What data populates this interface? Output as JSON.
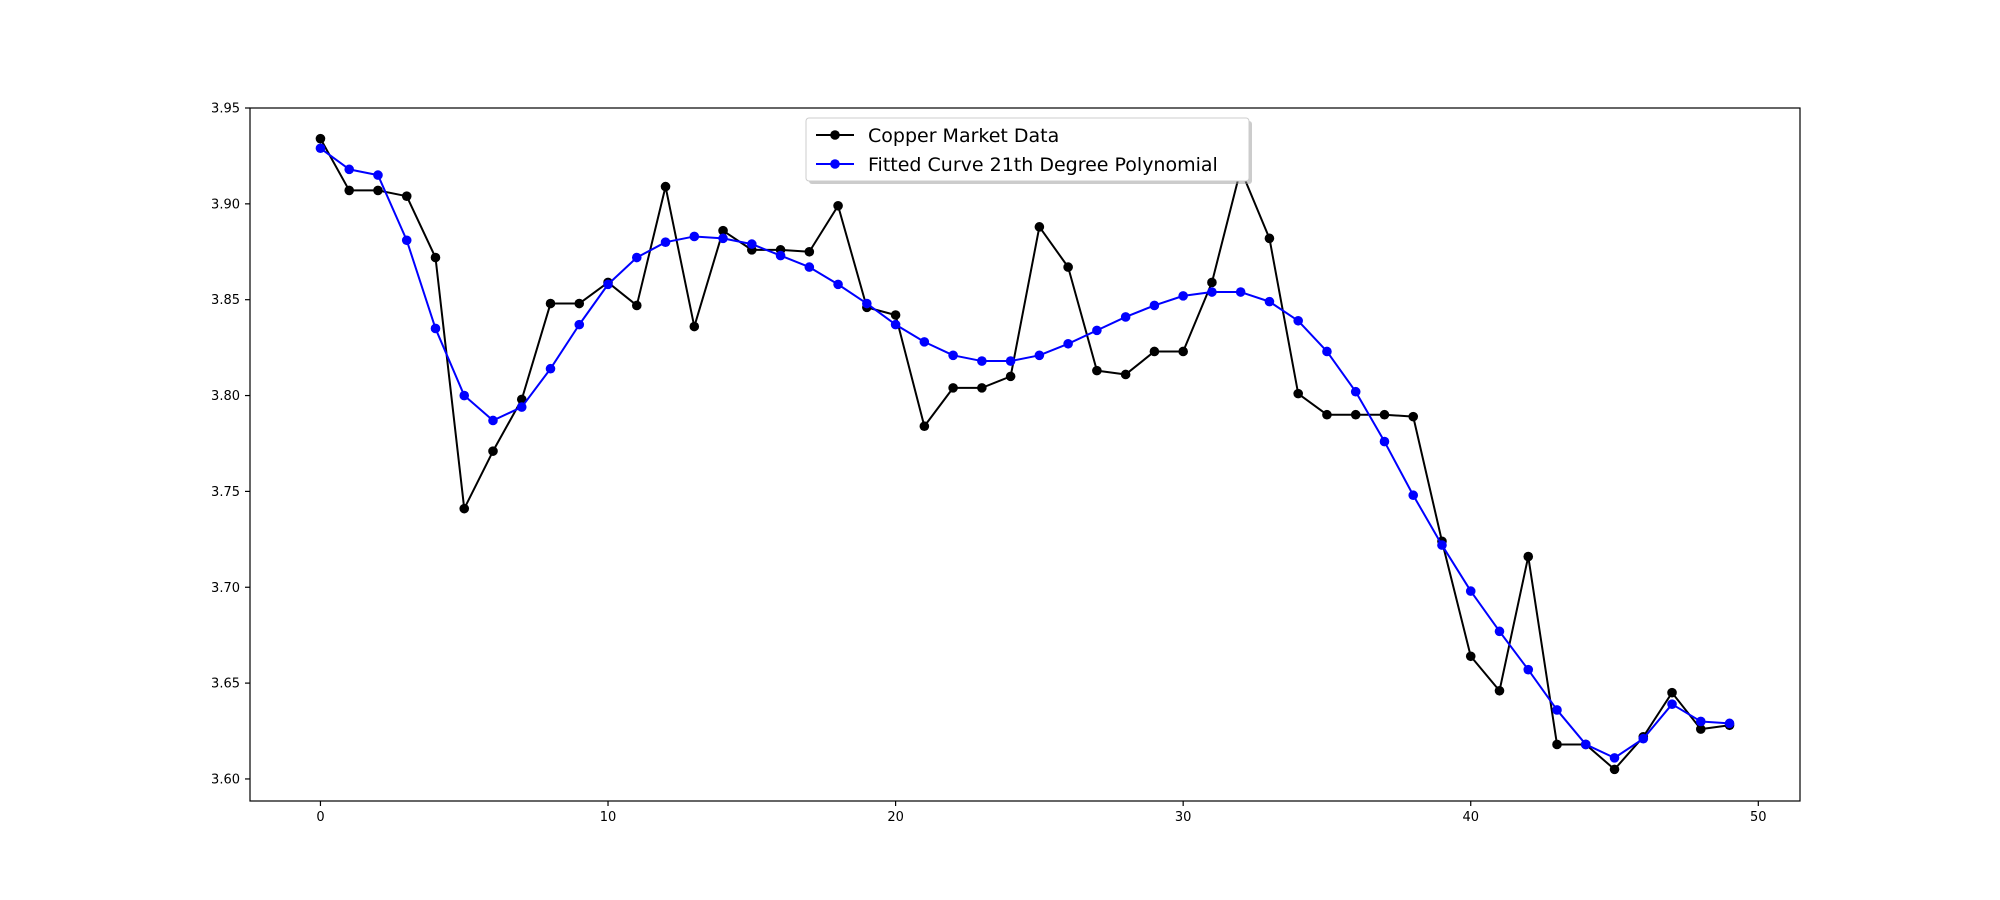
{
  "chart_data": {
    "type": "line",
    "title": "",
    "xlabel": "",
    "ylabel": "",
    "xlim": [
      -2.45,
      51.45
    ],
    "ylim": [
      3.5885,
      3.95
    ],
    "x_ticks": [
      0,
      10,
      20,
      30,
      40,
      50
    ],
    "y_ticks": [
      3.6,
      3.65,
      3.7,
      3.75,
      3.8,
      3.85,
      3.9,
      3.95
    ],
    "grid": false,
    "legend_position": "top-center",
    "markers": true,
    "x": [
      0,
      1,
      2,
      3,
      4,
      5,
      6,
      7,
      8,
      9,
      10,
      11,
      12,
      13,
      14,
      15,
      16,
      17,
      18,
      19,
      20,
      21,
      22,
      23,
      24,
      25,
      26,
      27,
      28,
      29,
      30,
      31,
      32,
      33,
      34,
      35,
      36,
      37,
      38,
      39,
      40,
      41,
      42,
      43,
      44,
      45,
      46,
      47,
      48,
      49
    ],
    "series": [
      {
        "name": "Copper Market Data",
        "color": "#000000",
        "values": [
          3.934,
          3.907,
          3.907,
          3.904,
          3.872,
          3.741,
          3.771,
          3.798,
          3.848,
          3.848,
          3.859,
          3.847,
          3.909,
          3.836,
          3.886,
          3.876,
          3.876,
          3.875,
          3.899,
          3.846,
          3.842,
          3.784,
          3.804,
          3.804,
          3.81,
          3.888,
          3.867,
          3.813,
          3.811,
          3.823,
          3.823,
          3.859,
          3.918,
          3.882,
          3.801,
          3.79,
          3.79,
          3.79,
          3.789,
          3.724,
          3.664,
          3.646,
          3.716,
          3.618,
          3.618,
          3.605,
          3.622,
          3.645,
          3.626,
          3.628
        ]
      },
      {
        "name": "Fitted Curve 21th Degree Polynomial",
        "color": "#0000ff",
        "values": [
          3.929,
          3.918,
          3.915,
          3.881,
          3.835,
          3.8,
          3.787,
          3.794,
          3.814,
          3.837,
          3.858,
          3.872,
          3.88,
          3.883,
          3.882,
          3.879,
          3.873,
          3.867,
          3.858,
          3.848,
          3.837,
          3.828,
          3.821,
          3.818,
          3.818,
          3.821,
          3.827,
          3.834,
          3.841,
          3.847,
          3.852,
          3.854,
          3.854,
          3.849,
          3.839,
          3.823,
          3.802,
          3.776,
          3.748,
          3.722,
          3.698,
          3.677,
          3.657,
          3.636,
          3.618,
          3.611,
          3.621,
          3.639,
          3.63,
          3.629
        ]
      }
    ]
  }
}
